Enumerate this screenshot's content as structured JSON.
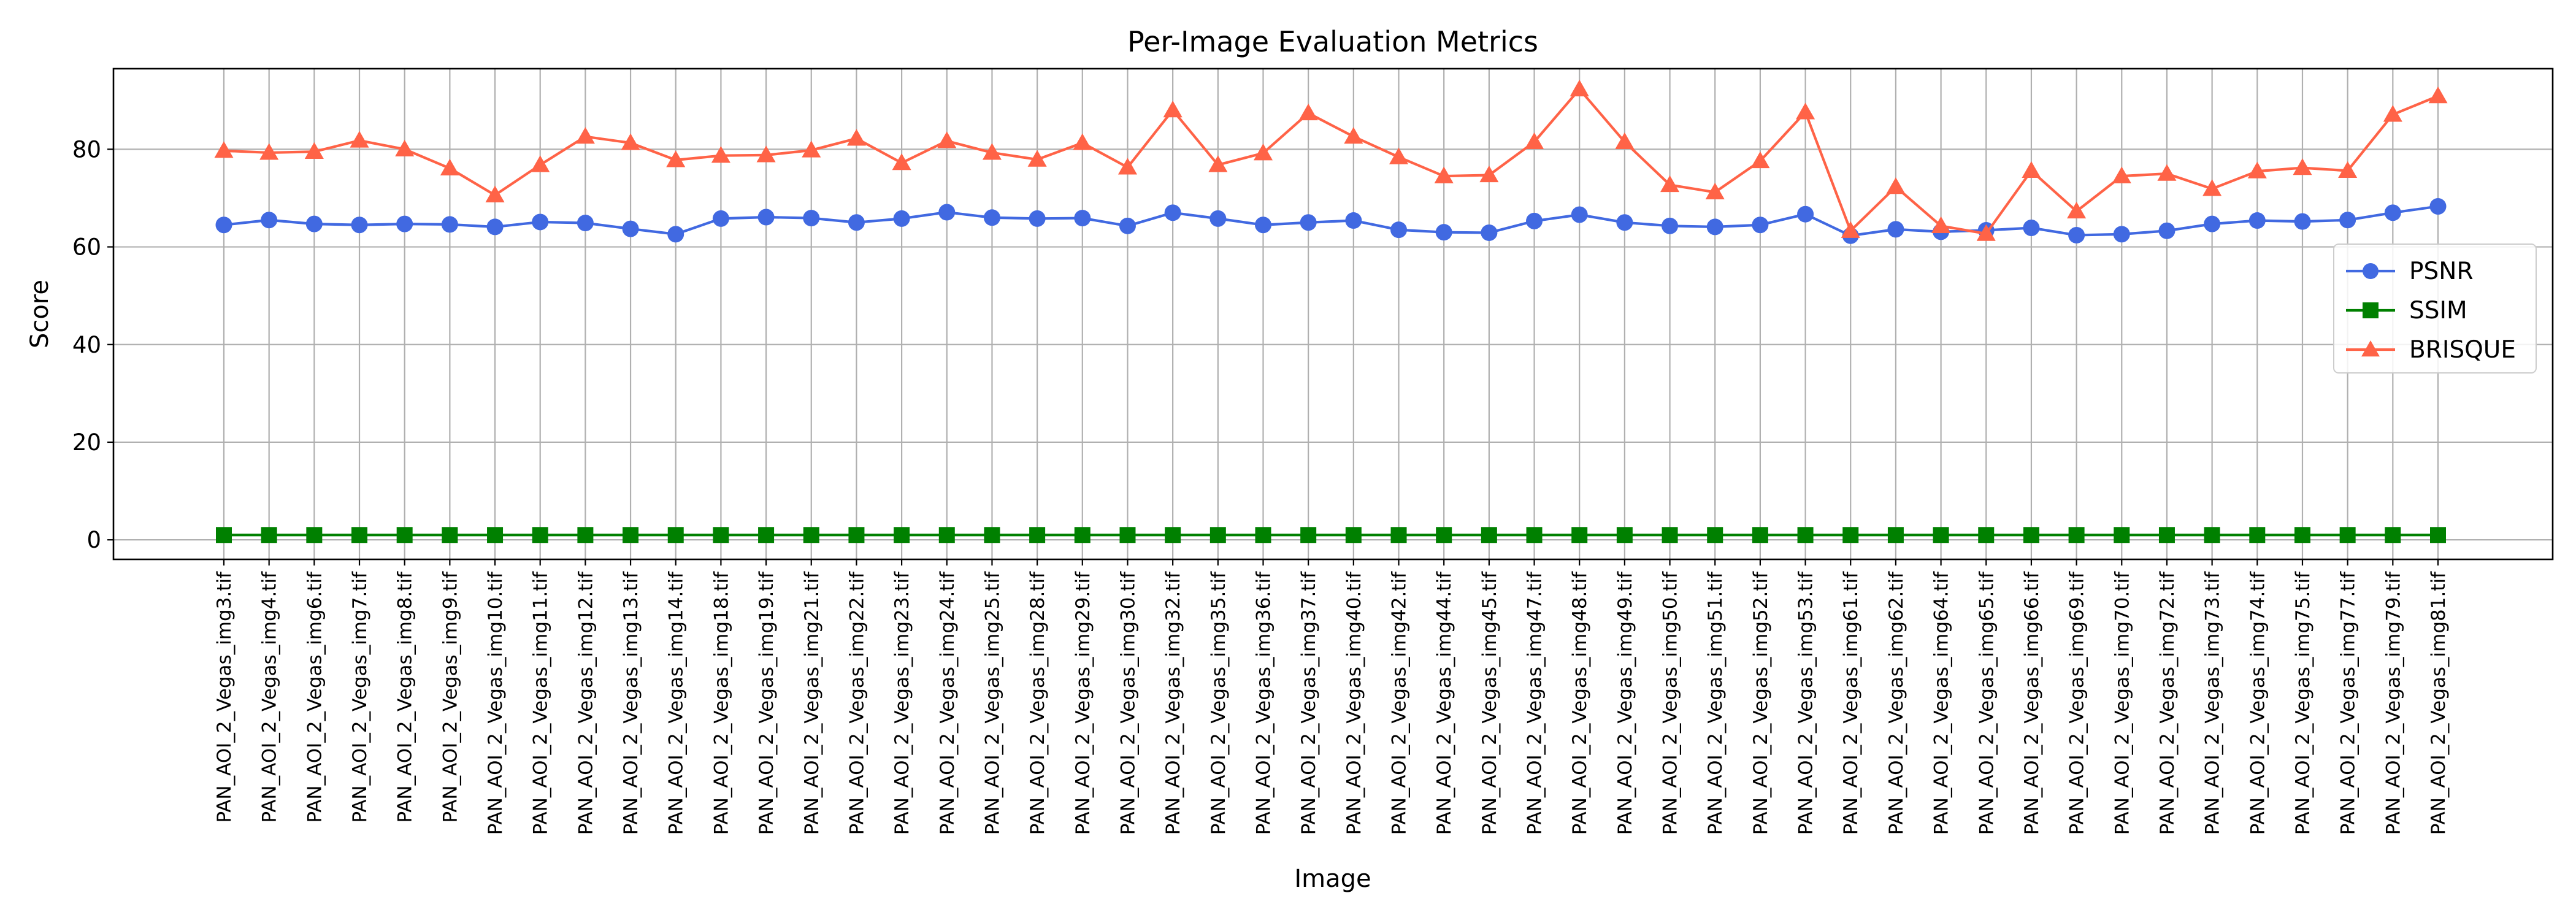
{
  "chart_data": {
    "type": "line",
    "title": "Per-Image Evaluation Metrics",
    "xlabel": "Image",
    "ylabel": "Score",
    "ylim": [
      -4,
      96.5
    ],
    "yticks": [
      0,
      20,
      40,
      60,
      80
    ],
    "grid": true,
    "legend_position": "center-right",
    "categories": [
      "PAN_AOI_2_Vegas_img3.tif",
      "PAN_AOI_2_Vegas_img4.tif",
      "PAN_AOI_2_Vegas_img6.tif",
      "PAN_AOI_2_Vegas_img7.tif",
      "PAN_AOI_2_Vegas_img8.tif",
      "PAN_AOI_2_Vegas_img9.tif",
      "PAN_AOI_2_Vegas_img10.tif",
      "PAN_AOI_2_Vegas_img11.tif",
      "PAN_AOI_2_Vegas_img12.tif",
      "PAN_AOI_2_Vegas_img13.tif",
      "PAN_AOI_2_Vegas_img14.tif",
      "PAN_AOI_2_Vegas_img18.tif",
      "PAN_AOI_2_Vegas_img19.tif",
      "PAN_AOI_2_Vegas_img21.tif",
      "PAN_AOI_2_Vegas_img22.tif",
      "PAN_AOI_2_Vegas_img23.tif",
      "PAN_AOI_2_Vegas_img24.tif",
      "PAN_AOI_2_Vegas_img25.tif",
      "PAN_AOI_2_Vegas_img28.tif",
      "PAN_AOI_2_Vegas_img29.tif",
      "PAN_AOI_2_Vegas_img30.tif",
      "PAN_AOI_2_Vegas_img32.tif",
      "PAN_AOI_2_Vegas_img35.tif",
      "PAN_AOI_2_Vegas_img36.tif",
      "PAN_AOI_2_Vegas_img37.tif",
      "PAN_AOI_2_Vegas_img40.tif",
      "PAN_AOI_2_Vegas_img42.tif",
      "PAN_AOI_2_Vegas_img44.tif",
      "PAN_AOI_2_Vegas_img45.tif",
      "PAN_AOI_2_Vegas_img47.tif",
      "PAN_AOI_2_Vegas_img48.tif",
      "PAN_AOI_2_Vegas_img49.tif",
      "PAN_AOI_2_Vegas_img50.tif",
      "PAN_AOI_2_Vegas_img51.tif",
      "PAN_AOI_2_Vegas_img52.tif",
      "PAN_AOI_2_Vegas_img53.tif",
      "PAN_AOI_2_Vegas_img61.tif",
      "PAN_AOI_2_Vegas_img62.tif",
      "PAN_AOI_2_Vegas_img64.tif",
      "PAN_AOI_2_Vegas_img65.tif",
      "PAN_AOI_2_Vegas_img66.tif",
      "PAN_AOI_2_Vegas_img69.tif",
      "PAN_AOI_2_Vegas_img70.tif",
      "PAN_AOI_2_Vegas_img72.tif",
      "PAN_AOI_2_Vegas_img73.tif",
      "PAN_AOI_2_Vegas_img74.tif",
      "PAN_AOI_2_Vegas_img75.tif",
      "PAN_AOI_2_Vegas_img77.tif",
      "PAN_AOI_2_Vegas_img79.tif",
      "PAN_AOI_2_Vegas_img81.tif"
    ],
    "series": [
      {
        "name": "PSNR",
        "color": "#4169e1",
        "marker": "circle",
        "values": [
          64.5,
          65.5,
          64.7,
          64.5,
          64.7,
          64.6,
          64.1,
          65.1,
          64.9,
          63.7,
          62.6,
          65.8,
          66.1,
          65.9,
          65.0,
          65.8,
          67.1,
          66.0,
          65.8,
          65.9,
          64.3,
          67.0,
          65.8,
          64.5,
          65.0,
          65.4,
          63.5,
          63.0,
          62.9,
          65.3,
          66.6,
          65.0,
          64.3,
          64.1,
          64.5,
          66.7,
          62.3,
          63.6,
          63.1,
          63.4,
          63.9,
          62.4,
          62.6,
          63.3,
          64.7,
          65.4,
          65.2,
          65.5,
          67.0,
          68.3
        ]
      },
      {
        "name": "SSIM",
        "color": "#008000",
        "marker": "square",
        "values": [
          0.99,
          0.99,
          0.99,
          0.99,
          0.99,
          0.99,
          0.99,
          0.99,
          0.99,
          0.99,
          0.99,
          0.99,
          0.99,
          0.99,
          0.99,
          0.99,
          0.99,
          0.99,
          0.99,
          0.99,
          0.99,
          0.99,
          0.99,
          0.99,
          0.99,
          0.99,
          0.99,
          0.99,
          0.99,
          0.99,
          0.99,
          0.99,
          0.99,
          0.99,
          0.99,
          0.99,
          0.99,
          0.99,
          0.99,
          0.99,
          0.99,
          0.99,
          0.99,
          0.99,
          0.99,
          0.99,
          0.99,
          0.99,
          0.99,
          0.99
        ]
      },
      {
        "name": "BRISQUE",
        "color": "#ff6347",
        "marker": "triangle",
        "values": [
          79.7,
          79.3,
          79.5,
          81.8,
          80.0,
          76.1,
          70.6,
          76.8,
          82.6,
          81.3,
          77.8,
          78.7,
          78.8,
          79.8,
          82.2,
          77.2,
          81.7,
          79.3,
          77.9,
          81.3,
          76.3,
          88.0,
          76.8,
          79.2,
          87.4,
          82.6,
          78.4,
          74.5,
          74.7,
          81.5,
          92.3,
          81.5,
          72.7,
          71.2,
          77.6,
          87.6,
          63.3,
          72.3,
          64.3,
          62.7,
          75.6,
          67.3,
          74.5,
          75.0,
          71.9,
          75.5,
          76.2,
          75.6,
          87.1,
          90.9
        ]
      }
    ]
  }
}
